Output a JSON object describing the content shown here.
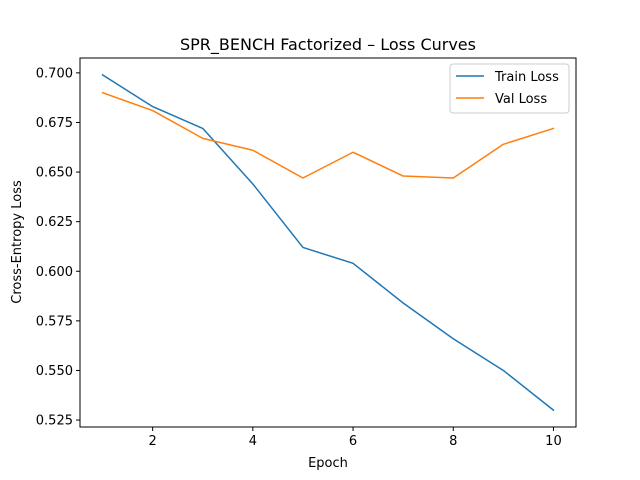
{
  "chart_data": {
    "type": "line",
    "title": "SPR_BENCH Factorized – Loss Curves",
    "xlabel": "Epoch",
    "ylabel": "Cross-Entropy Loss",
    "x": [
      1,
      2,
      3,
      4,
      5,
      6,
      7,
      8,
      9,
      10
    ],
    "xlim": [
      0.55,
      10.45
    ],
    "ylim": [
      0.5215,
      0.7075
    ],
    "xticks": [
      2,
      4,
      6,
      8,
      10
    ],
    "yticks": [
      0.525,
      0.55,
      0.575,
      0.6,
      0.625,
      0.65,
      0.675,
      0.7
    ],
    "ytick_labels": [
      "0.525",
      "0.550",
      "0.575",
      "0.600",
      "0.625",
      "0.650",
      "0.675",
      "0.700"
    ],
    "grid": false,
    "legend_position": "top-right",
    "series": [
      {
        "name": "Train Loss",
        "color": "#1f77b4",
        "values": [
          0.699,
          0.683,
          0.672,
          0.644,
          0.612,
          0.604,
          0.584,
          0.566,
          0.55,
          0.53
        ]
      },
      {
        "name": "Val Loss",
        "color": "#ff7f0e",
        "values": [
          0.69,
          0.681,
          0.667,
          0.661,
          0.647,
          0.66,
          0.648,
          0.647,
          0.664,
          0.672
        ]
      }
    ]
  }
}
